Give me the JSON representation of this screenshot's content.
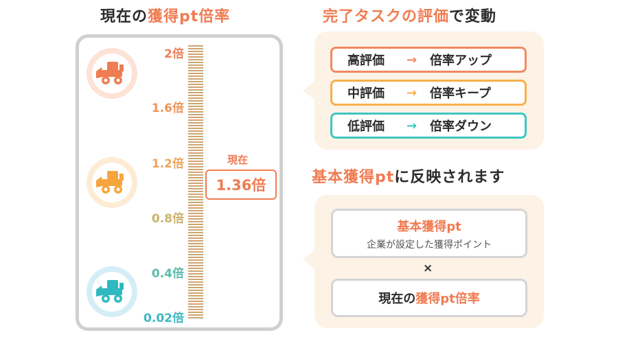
{
  "left": {
    "title_plain": "現在の",
    "title_accent": "獲得pt倍率",
    "scale_labels": [
      {
        "text": "2倍",
        "color": "#ef7f58"
      },
      {
        "text": "1.6倍",
        "color": "#ee9359"
      },
      {
        "text": "1.2倍",
        "color": "#eca65e"
      },
      {
        "text": "0.8倍",
        "color": "#c9b26a"
      },
      {
        "text": "0.4倍",
        "color": "#5cbcaa"
      },
      {
        "text": "0.02倍",
        "color": "#3cb8c2"
      }
    ],
    "current_label": "現在",
    "current_value": "1.36倍",
    "icons": [
      "bulldozer-high-icon",
      "bulldozer-mid-icon",
      "bulldozer-low-icon"
    ]
  },
  "right_top": {
    "title_a": "完了",
    "title_b": "タスクの",
    "title_c": "評価",
    "title_d": "で変動",
    "rules": [
      {
        "eval": "高評価",
        "arrow": "→",
        "result": "倍率アップ"
      },
      {
        "eval": "中評価",
        "arrow": "→",
        "result": "倍率キープ"
      },
      {
        "eval": "低評価",
        "arrow": "→",
        "result": "倍率ダウン"
      }
    ]
  },
  "right_bottom": {
    "title_accent": "基本獲得pt",
    "title_plain": "に反映されます",
    "base_title": "基本獲得pt",
    "base_sub": "企業が設定した獲得ポイント",
    "times": "×",
    "rate_plain": "現在の",
    "rate_accent": "獲得pt倍率"
  },
  "colors": {
    "accent": "#f07c52",
    "high": "#f08a5d",
    "mid": "#f6b04a",
    "low": "#3cc7c3"
  }
}
